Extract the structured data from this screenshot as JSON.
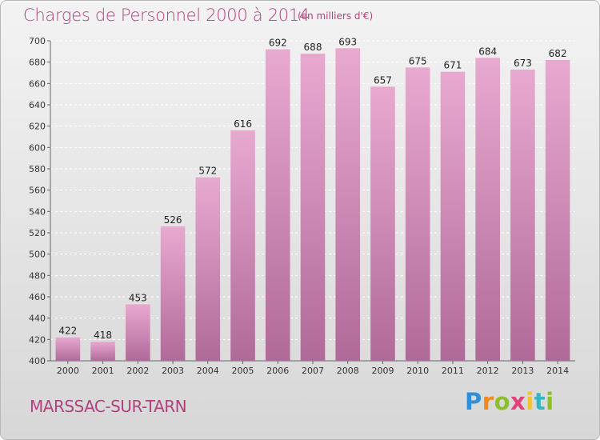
{
  "header": {
    "title": "Charges de Personnel 2000 à 2014",
    "subtitle": "(en milliers d'€)"
  },
  "footer": {
    "city": "MARSSAC-SUR-TARN",
    "logo_letters": [
      "P",
      "r",
      "o",
      "x",
      "i",
      "t",
      "i"
    ],
    "logo_colors": [
      "#2f8fd8",
      "#f08a1c",
      "#8cbf2a",
      "#e2407a",
      "#f2c230",
      "#2fb7c8",
      "#8cbf2a"
    ]
  },
  "chart_data": {
    "type": "bar",
    "title": "Charges de Personnel 2000 à 2014",
    "subtitle": "(en milliers d'€)",
    "categories": [
      "2000",
      "2001",
      "2002",
      "2003",
      "2004",
      "2005",
      "2006",
      "2007",
      "2008",
      "2009",
      "2010",
      "2011",
      "2012",
      "2013",
      "2014"
    ],
    "values": [
      422,
      418,
      453,
      526,
      572,
      616,
      692,
      688,
      693,
      657,
      675,
      671,
      684,
      673,
      682
    ],
    "value_labels": [
      "422",
      "418",
      "453",
      "526",
      "572",
      "616",
      "692",
      "688",
      "693",
      "657",
      "675",
      "671",
      "684",
      "673",
      "682"
    ],
    "y_ticks": [
      "400",
      "420",
      "440",
      "460",
      "480",
      "500",
      "520",
      "540",
      "560",
      "580",
      "600",
      "620",
      "640",
      "660",
      "680",
      "700"
    ],
    "ylim": [
      400,
      700
    ],
    "ytick_step": 20,
    "grid": true,
    "legend": "none",
    "bar_color_top": "#e8a9d0",
    "bar_color_bottom": "#b06a99"
  }
}
